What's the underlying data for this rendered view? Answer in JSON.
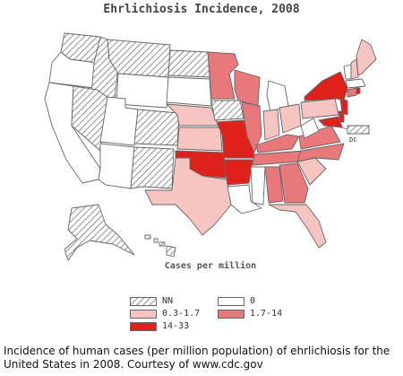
{
  "title": "Ehrlichiosis Incidence, 2008",
  "legend": {
    "title": "Cases per million",
    "items": [
      {
        "label": "NN",
        "color": "#ffffff",
        "pattern": "hatch"
      },
      {
        "label": "0",
        "color": "#ffffff"
      },
      {
        "label": "0.3-1.7",
        "color": "#f6c4c1"
      },
      {
        "label": "1.7-14",
        "color": "#e8787a"
      },
      {
        "label": "14-33",
        "color": "#e0211b"
      }
    ]
  },
  "dc_label": "DC",
  "caption": "Incidence of human cases (per million population) of ehrlichiosis for the United States in 2008.  Courtesy of www.cdc.gov"
}
